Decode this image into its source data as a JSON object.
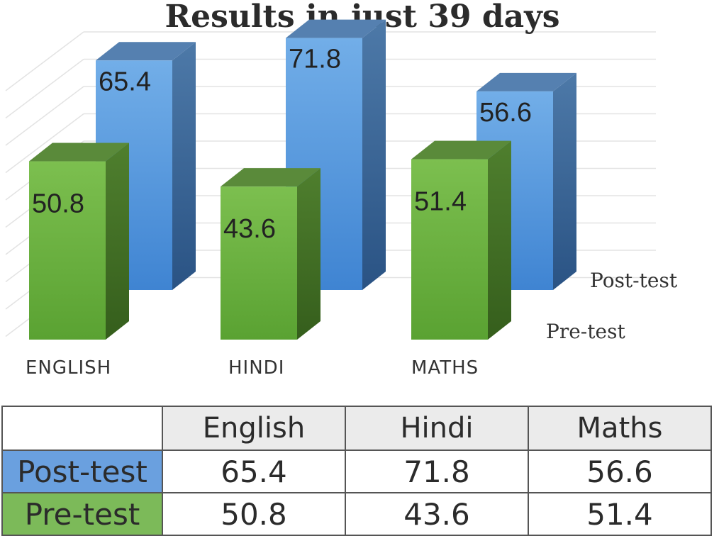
{
  "chart_data": {
    "type": "bar",
    "title": "Results in just 39 days",
    "categories": [
      "ENGLISH",
      "HINDI",
      "MATHS"
    ],
    "series": [
      {
        "name": "Post-test",
        "values": [
          65.4,
          71.8,
          56.6
        ],
        "color": "#4f8fd6"
      },
      {
        "name": "Pre-test",
        "values": [
          50.8,
          43.6,
          51.4
        ],
        "color": "#6aaa3f"
      }
    ],
    "ylim": [
      0,
      100
    ],
    "grid": true,
    "legend": "right",
    "three_d": true
  },
  "table": {
    "headers": [
      "",
      "English",
      "Hindi",
      "Maths"
    ],
    "rows": [
      {
        "label": "Post-test",
        "values": [
          "65.4",
          "71.8",
          "56.6"
        ]
      },
      {
        "label": "Pre-test",
        "values": [
          "50.8",
          "43.6",
          "51.4"
        ]
      }
    ]
  }
}
